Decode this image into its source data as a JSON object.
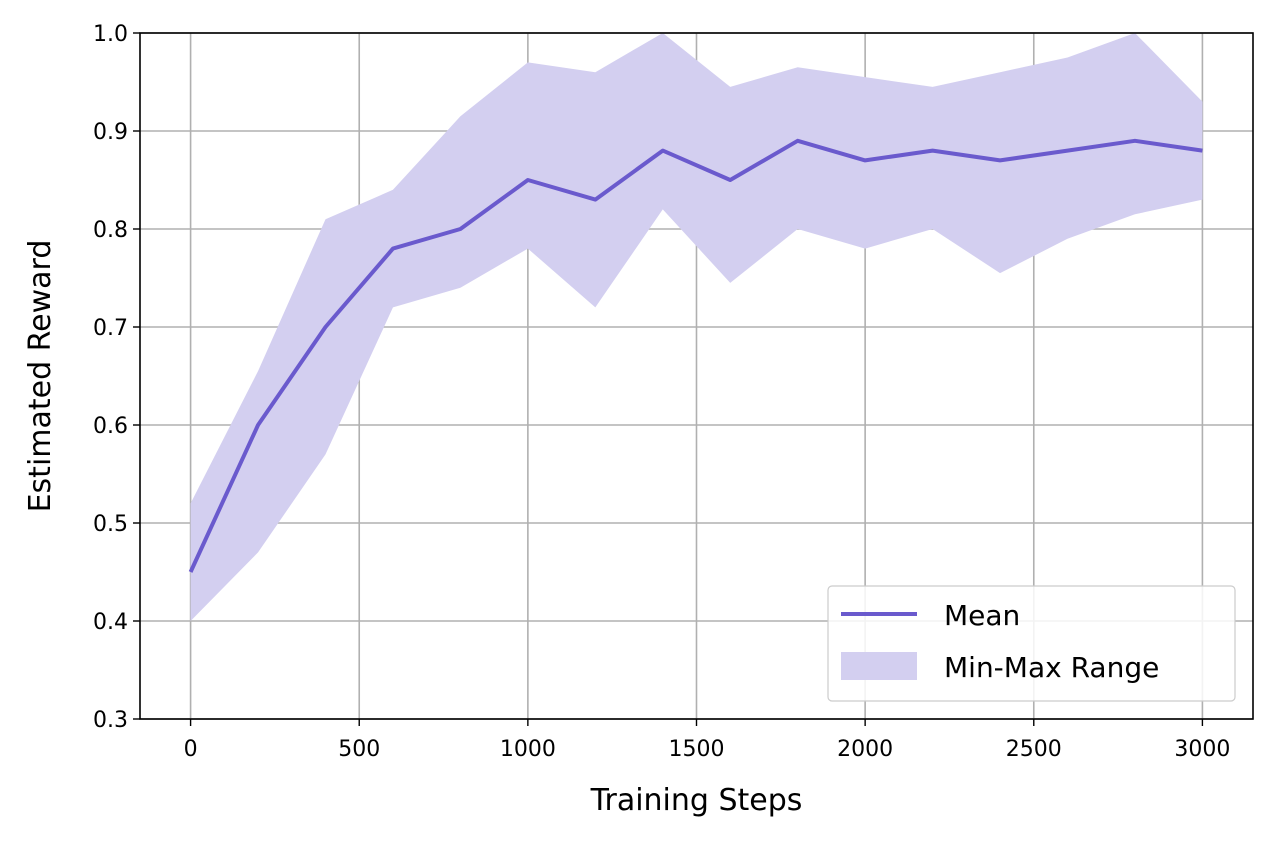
{
  "chart_data": {
    "type": "line",
    "xlabel": "Training Steps",
    "ylabel": "Estimated Reward",
    "xlim": [
      -150,
      3150
    ],
    "ylim": [
      0.3,
      1.0
    ],
    "xticks": [
      0,
      500,
      1000,
      1500,
      2000,
      2500,
      3000
    ],
    "xtick_labels": [
      "0",
      "500",
      "1000",
      "1500",
      "2000",
      "2500",
      "3000"
    ],
    "yticks": [
      0.3,
      0.4,
      0.5,
      0.6,
      0.7,
      0.8,
      0.9,
      1.0
    ],
    "ytick_labels": [
      "0.3",
      "0.4",
      "0.5",
      "0.6",
      "0.7",
      "0.8",
      "0.9",
      "1.0"
    ],
    "grid": true,
    "legend_position": "bottom-right",
    "x": [
      0,
      200,
      400,
      600,
      800,
      1000,
      1200,
      1400,
      1600,
      1800,
      2000,
      2200,
      2400,
      2600,
      2800,
      3000
    ],
    "series": [
      {
        "name": "Mean",
        "kind": "line",
        "color": "#6a5acd",
        "values": [
          0.45,
          0.6,
          0.7,
          0.78,
          0.8,
          0.85,
          0.83,
          0.88,
          0.85,
          0.89,
          0.87,
          0.88,
          0.87,
          0.88,
          0.89,
          0.88
        ]
      },
      {
        "name": "Min-Max Range",
        "kind": "band",
        "color": "#d3cff0",
        "min": [
          0.4,
          0.47,
          0.57,
          0.72,
          0.74,
          0.78,
          0.72,
          0.82,
          0.745,
          0.8,
          0.78,
          0.8,
          0.755,
          0.79,
          0.815,
          0.83
        ],
        "max": [
          0.52,
          0.655,
          0.81,
          0.84,
          0.915,
          0.97,
          0.96,
          1.0,
          0.945,
          0.965,
          0.955,
          0.945,
          0.96,
          0.975,
          1.0,
          0.93
        ]
      }
    ]
  }
}
